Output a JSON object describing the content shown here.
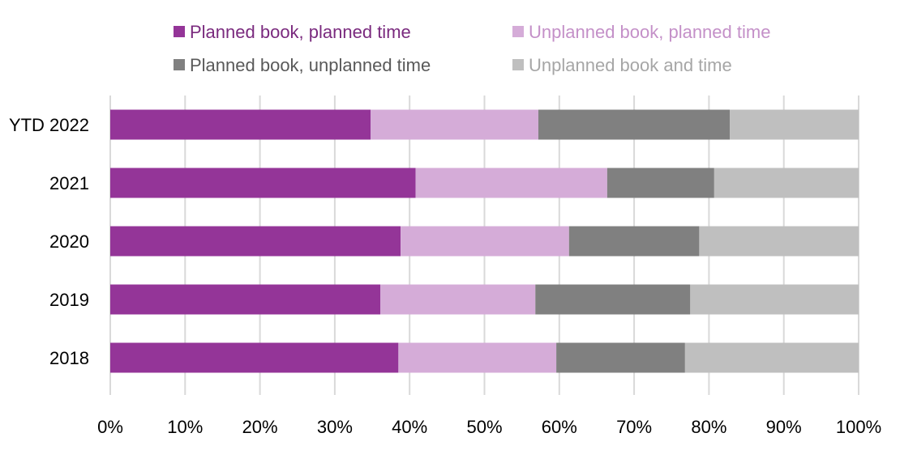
{
  "chart_data": {
    "type": "bar",
    "orientation": "horizontal",
    "stacked": true,
    "percent_stacked": true,
    "title": "",
    "xlabel": "",
    "ylabel": "",
    "categories": [
      "YTD 2022",
      "2021",
      "2020",
      "2019",
      "2018"
    ],
    "series": [
      {
        "name": "Planned book, planned time",
        "color": "#943598",
        "values": [
          34.8,
          40.8,
          38.8,
          36.1,
          38.5
        ]
      },
      {
        "name": "Unplanned book, planned time",
        "color": "#d5acd8",
        "values": [
          22.4,
          25.6,
          22.5,
          20.7,
          21.1
        ]
      },
      {
        "name": "Planned book, unplanned time",
        "color": "#808080",
        "values": [
          25.6,
          14.3,
          17.4,
          20.7,
          17.2
        ]
      },
      {
        "name": "Unplanned book and time",
        "color": "#bfbfbf",
        "values": [
          17.2,
          19.3,
          21.3,
          22.5,
          23.2
        ]
      }
    ],
    "xlim": [
      0,
      100
    ],
    "xticks": [
      "0%",
      "10%",
      "20%",
      "30%",
      "40%",
      "50%",
      "60%",
      "70%",
      "80%",
      "90%",
      "100%"
    ],
    "grid": true,
    "legend_position": "top"
  }
}
